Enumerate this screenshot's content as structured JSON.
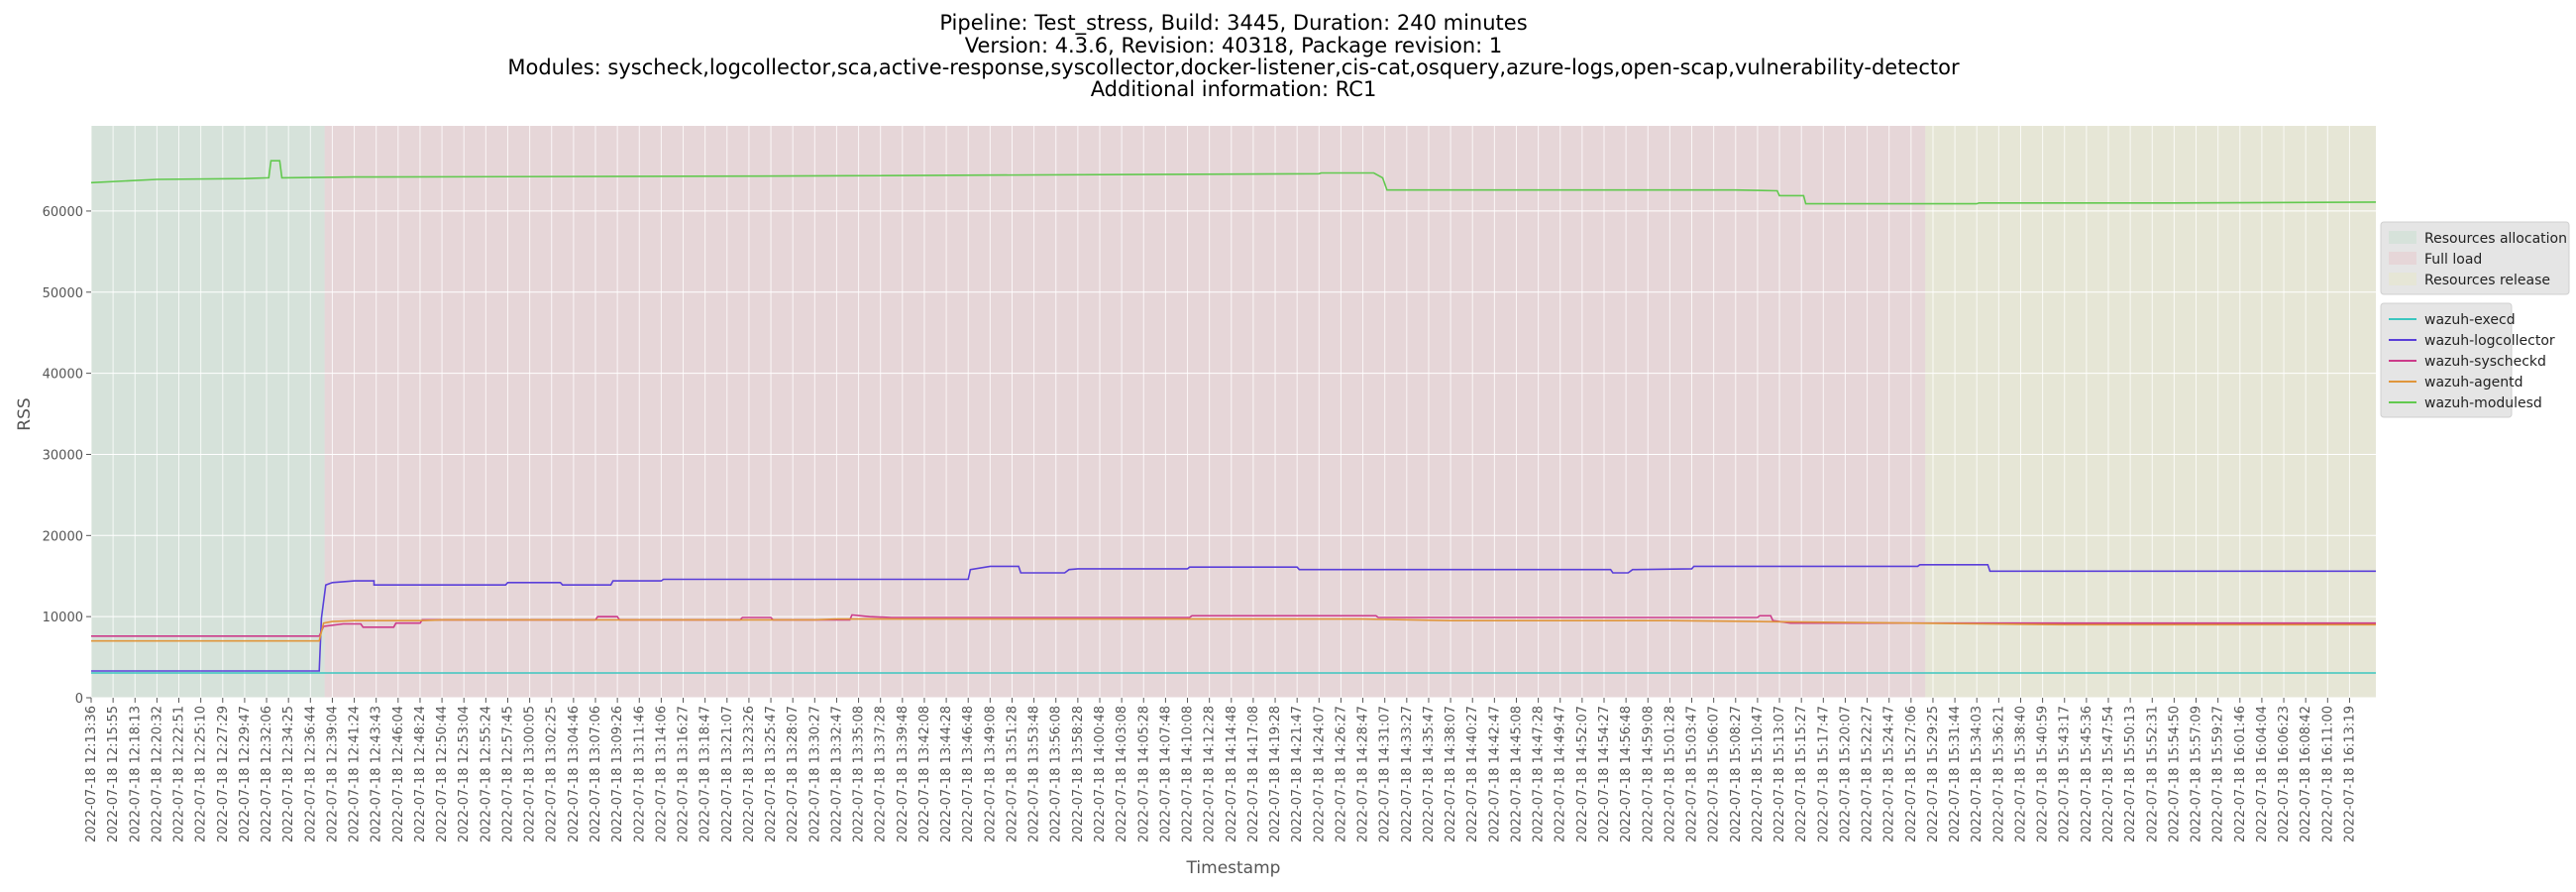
{
  "chart_data": {
    "type": "line",
    "title_lines": [
      "Pipeline: Test_stress, Build: 3445, Duration: 240 minutes",
      "Version: 4.3.6, Revision: 40318, Package revision: 1",
      "Modules: syscheck,logcollector,sca,active-response,syscollector,docker-listener,cis-cat,osquery,azure-logs,open-scap,vulnerability-detector",
      "Additional information: RC1"
    ],
    "xlabel": "Timestamp",
    "ylabel": "RSS",
    "ylim": [
      0,
      70500
    ],
    "yticks": [
      0,
      10000,
      20000,
      30000,
      40000,
      50000,
      60000
    ],
    "grid": true,
    "legend_position": "right",
    "x_ticks": [
      "2022-07-18 12:13:36",
      "2022-07-18 12:15:55",
      "2022-07-18 12:18:13",
      "2022-07-18 12:20:32",
      "2022-07-18 12:22:51",
      "2022-07-18 12:25:10",
      "2022-07-18 12:27:29",
      "2022-07-18 12:29:47",
      "2022-07-18 12:32:06",
      "2022-07-18 12:34:25",
      "2022-07-18 12:36:44",
      "2022-07-18 12:39:04",
      "2022-07-18 12:41:24",
      "2022-07-18 12:43:43",
      "2022-07-18 12:46:04",
      "2022-07-18 12:48:24",
      "2022-07-18 12:50:44",
      "2022-07-18 12:53:04",
      "2022-07-18 12:55:24",
      "2022-07-18 12:57:45",
      "2022-07-18 13:00:05",
      "2022-07-18 13:02:25",
      "2022-07-18 13:04:46",
      "2022-07-18 13:07:06",
      "2022-07-18 13:09:26",
      "2022-07-18 13:11:46",
      "2022-07-18 13:14:06",
      "2022-07-18 13:16:27",
      "2022-07-18 13:18:47",
      "2022-07-18 13:21:07",
      "2022-07-18 13:23:26",
      "2022-07-18 13:25:47",
      "2022-07-18 13:28:07",
      "2022-07-18 13:30:27",
      "2022-07-18 13:32:47",
      "2022-07-18 13:35:08",
      "2022-07-18 13:37:28",
      "2022-07-18 13:39:48",
      "2022-07-18 13:42:08",
      "2022-07-18 13:44:28",
      "2022-07-18 13:46:48",
      "2022-07-18 13:49:08",
      "2022-07-18 13:51:28",
      "2022-07-18 13:53:48",
      "2022-07-18 13:56:08",
      "2022-07-18 13:58:28",
      "2022-07-18 14:00:48",
      "2022-07-18 14:03:08",
      "2022-07-18 14:05:28",
      "2022-07-18 14:07:48",
      "2022-07-18 14:10:08",
      "2022-07-18 14:12:28",
      "2022-07-18 14:14:48",
      "2022-07-18 14:17:08",
      "2022-07-18 14:19:28",
      "2022-07-18 14:21:47",
      "2022-07-18 14:24:07",
      "2022-07-18 14:26:27",
      "2022-07-18 14:28:47",
      "2022-07-18 14:31:07",
      "2022-07-18 14:33:27",
      "2022-07-18 14:35:47",
      "2022-07-18 14:38:07",
      "2022-07-18 14:40:27",
      "2022-07-18 14:42:47",
      "2022-07-18 14:45:08",
      "2022-07-18 14:47:28",
      "2022-07-18 14:49:47",
      "2022-07-18 14:52:07",
      "2022-07-18 14:54:27",
      "2022-07-18 14:56:48",
      "2022-07-18 14:59:08",
      "2022-07-18 15:01:28",
      "2022-07-18 15:03:47",
      "2022-07-18 15:06:07",
      "2022-07-18 15:08:27",
      "2022-07-18 15:10:47",
      "2022-07-18 15:13:07",
      "2022-07-18 15:15:27",
      "2022-07-18 15:17:47",
      "2022-07-18 15:20:07",
      "2022-07-18 15:22:27",
      "2022-07-18 15:24:47",
      "2022-07-18 15:27:06",
      "2022-07-18 15:29:25",
      "2022-07-18 15:31:44",
      "2022-07-18 15:34:03",
      "2022-07-18 15:36:21",
      "2022-07-18 15:38:40",
      "2022-07-18 15:40:59",
      "2022-07-18 15:43:17",
      "2022-07-18 15:45:36",
      "2022-07-18 15:47:54",
      "2022-07-18 15:50:13",
      "2022-07-18 15:52:31",
      "2022-07-18 15:54:50",
      "2022-07-18 15:57:09",
      "2022-07-18 15:59:27",
      "2022-07-18 16:01:46",
      "2022-07-18 16:04:04",
      "2022-07-18 16:06:23",
      "2022-07-18 16:08:42",
      "2022-07-18 16:11:00",
      "2022-07-18 16:13:19"
    ],
    "phases": [
      {
        "name": "Resources allocation",
        "start_index": 0,
        "end_index": 10.65,
        "color": "#d6e2da"
      },
      {
        "name": "Full load",
        "start_index": 10.65,
        "end_index": 83.65,
        "color": "#e6d6d8"
      },
      {
        "name": "Resources release",
        "start_index": 83.65,
        "end_index": 104.2,
        "color": "#e6e6d6"
      }
    ],
    "series": [
      {
        "name": "wazuh-execd",
        "color": "#3bc6bf",
        "points": [
          [
            0,
            3050
          ],
          [
            104.2,
            3050
          ]
        ]
      },
      {
        "name": "wazuh-logcollector",
        "color": "#5a3fd9",
        "points": [
          [
            0,
            3300
          ],
          [
            10.4,
            3300
          ],
          [
            10.5,
            9800
          ],
          [
            10.7,
            13900
          ],
          [
            11,
            14200
          ],
          [
            12,
            14400
          ],
          [
            12.9,
            14400
          ],
          [
            12.9,
            13900
          ],
          [
            18.9,
            13900
          ],
          [
            19,
            14200
          ],
          [
            21.4,
            14200
          ],
          [
            21.5,
            13900
          ],
          [
            23.7,
            13900
          ],
          [
            23.8,
            14400
          ],
          [
            26,
            14400
          ],
          [
            26.1,
            14600
          ],
          [
            40,
            14600
          ],
          [
            40.1,
            15800
          ],
          [
            41,
            16200
          ],
          [
            42.3,
            16200
          ],
          [
            42.4,
            15400
          ],
          [
            44.4,
            15400
          ],
          [
            44.6,
            15800
          ],
          [
            45,
            15900
          ],
          [
            50,
            15900
          ],
          [
            50.1,
            16100
          ],
          [
            55,
            16100
          ],
          [
            55.1,
            15800
          ],
          [
            69.3,
            15800
          ],
          [
            69.4,
            15400
          ],
          [
            70.1,
            15400
          ],
          [
            70.3,
            15800
          ],
          [
            73,
            15900
          ],
          [
            73.1,
            16200
          ],
          [
            83.3,
            16200
          ],
          [
            83.4,
            16400
          ],
          [
            86.5,
            16400
          ],
          [
            86.6,
            15600
          ],
          [
            104.2,
            15600
          ]
        ]
      },
      {
        "name": "wazuh-syscheckd",
        "color": "#cc3b8a",
        "points": [
          [
            0,
            7600
          ],
          [
            10.4,
            7600
          ],
          [
            10.6,
            8800
          ],
          [
            11.5,
            9100
          ],
          [
            12.3,
            9100
          ],
          [
            12.4,
            8700
          ],
          [
            13.8,
            8700
          ],
          [
            13.9,
            9200
          ],
          [
            15,
            9200
          ],
          [
            15.1,
            9600
          ],
          [
            23,
            9600
          ],
          [
            23.1,
            10000
          ],
          [
            24,
            10000
          ],
          [
            24.1,
            9600
          ],
          [
            29.6,
            9600
          ],
          [
            29.7,
            9900
          ],
          [
            31,
            9900
          ],
          [
            31.1,
            9600
          ],
          [
            34.6,
            9600
          ],
          [
            34.7,
            10200
          ],
          [
            35.5,
            10000
          ],
          [
            36.5,
            9900
          ],
          [
            40,
            9900
          ],
          [
            47,
            9900
          ],
          [
            50.1,
            9900
          ],
          [
            50.2,
            10100
          ],
          [
            58.6,
            10100
          ],
          [
            58.7,
            9900
          ],
          [
            76,
            9900
          ],
          [
            76.1,
            10100
          ],
          [
            76.6,
            10100
          ],
          [
            76.7,
            9500
          ],
          [
            77.5,
            9200
          ],
          [
            104.2,
            9200
          ]
        ]
      },
      {
        "name": "wazuh-agentd",
        "color": "#e0963c",
        "points": [
          [
            0,
            7000
          ],
          [
            10.4,
            7000
          ],
          [
            10.6,
            9200
          ],
          [
            11,
            9400
          ],
          [
            12,
            9500
          ],
          [
            13.5,
            9500
          ],
          [
            15,
            9500
          ],
          [
            16,
            9600
          ],
          [
            33,
            9600
          ],
          [
            34,
            9700
          ],
          [
            45,
            9700
          ],
          [
            58,
            9700
          ],
          [
            62,
            9500
          ],
          [
            72,
            9500
          ],
          [
            76,
            9400
          ],
          [
            83,
            9200
          ],
          [
            90,
            9000
          ],
          [
            104.2,
            9000
          ]
        ]
      },
      {
        "name": "wazuh-modulesd",
        "color": "#62c94f",
        "points": [
          [
            0,
            63500
          ],
          [
            3,
            63900
          ],
          [
            7,
            64000
          ],
          [
            8.1,
            64100
          ],
          [
            8.2,
            66200
          ],
          [
            8.6,
            66200
          ],
          [
            8.7,
            64100
          ],
          [
            12,
            64200
          ],
          [
            30,
            64300
          ],
          [
            56,
            64600
          ],
          [
            56.1,
            64700
          ],
          [
            58.5,
            64700
          ],
          [
            58.9,
            64100
          ],
          [
            59.1,
            62600
          ],
          [
            75,
            62600
          ],
          [
            76.9,
            62500
          ],
          [
            77,
            61900
          ],
          [
            78.1,
            61900
          ],
          [
            78.2,
            60900
          ],
          [
            85,
            60900
          ],
          [
            86,
            60900
          ],
          [
            86.1,
            61000
          ],
          [
            95,
            61000
          ],
          [
            104.2,
            61100
          ]
        ]
      }
    ]
  }
}
